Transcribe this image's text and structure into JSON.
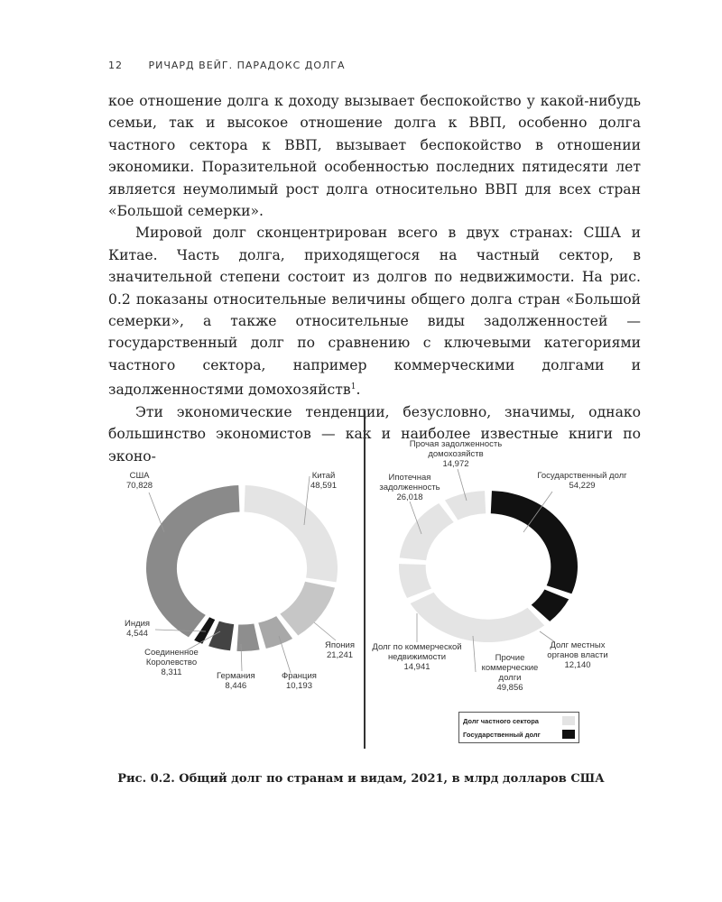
{
  "header": {
    "page_number": "12",
    "running_title": "РИЧАРД ВЕЙГ. ПАРАДОКС ДОЛГА"
  },
  "paragraphs": [
    "кое отношение долга к доходу вызывает беспокойство у какой-нибудь семьи, так и высокое отношение долга к ВВП, особенно долга частного сектора к ВВП, вызывает беспокойство в отношении экономики. Поразительной особенностью последних пятидесяти лет является неумолимый рост долга относительно ВВП для всех стран «Большой семерки».",
    "Мировой долг сконцентрирован всего в двух странах: США и Китае. Часть долга, приходящегося на частный сектор, в значительной степени состоит из долгов по недвижимости. На рис. 0.2 показаны относительные величины общего долга стран «Большой семерки», а также относительные виды задолженностей — государственный долг по сравнению с ключевыми категориями частного сектора, например коммерческими долгами и задолженностями домохозяйств",
    "Эти экономические тенденции, безусловно, значимы, однако большинство экономистов — как и наиболее известные книги по эконо-"
  ],
  "footnote_mark": "1",
  "caption": "Рис. 0.2. Общий долг по странам и видам, 2021, в млрд долларов США",
  "chart_data": [
    {
      "type": "pie",
      "donut": true,
      "unit": "млрд долларов США",
      "categories": [
        "Китай",
        "Япония",
        "Франция",
        "Германия",
        "Соединенное Королевство",
        "Индия",
        "США"
      ],
      "values": [
        48591,
        21241,
        10193,
        8446,
        8311,
        4544,
        70828
      ],
      "value_labels": [
        "48,591",
        "21,241",
        "10,193",
        "8,446",
        "8,311",
        "4,544",
        "70,828"
      ],
      "colors": [
        "#e4e4e4",
        "#c6c6c6",
        "#a8a8a8",
        "#8e8e8e",
        "#434343",
        "#151515",
        "#8a8a8a"
      ]
    },
    {
      "type": "pie",
      "donut": true,
      "unit": "млрд долларов США",
      "categories": [
        "Государственный долг",
        "Долг местных органов власти",
        "Прочие коммерческие долги",
        "Долг по коммерческой недвижимости",
        "Ипотечная задолженность",
        "Прочая задолженность домохозяйств"
      ],
      "values": [
        54229,
        12140,
        49856,
        14941,
        26018,
        14972
      ],
      "value_labels": [
        "54,229",
        "12,140",
        "49,856",
        "14,941",
        "26,018",
        "14,972"
      ],
      "sector": [
        "Государственный долг",
        "Государственный долг",
        "Долг частного сектора",
        "Долг частного сектора",
        "Долг частного сектора",
        "Долг частного сектора"
      ],
      "legend": [
        {
          "label": "Долг частного сектора",
          "color": "#e4e4e4"
        },
        {
          "label": "Государственный долг",
          "color": "#111111"
        }
      ],
      "legend_position": "bottom-right"
    }
  ]
}
